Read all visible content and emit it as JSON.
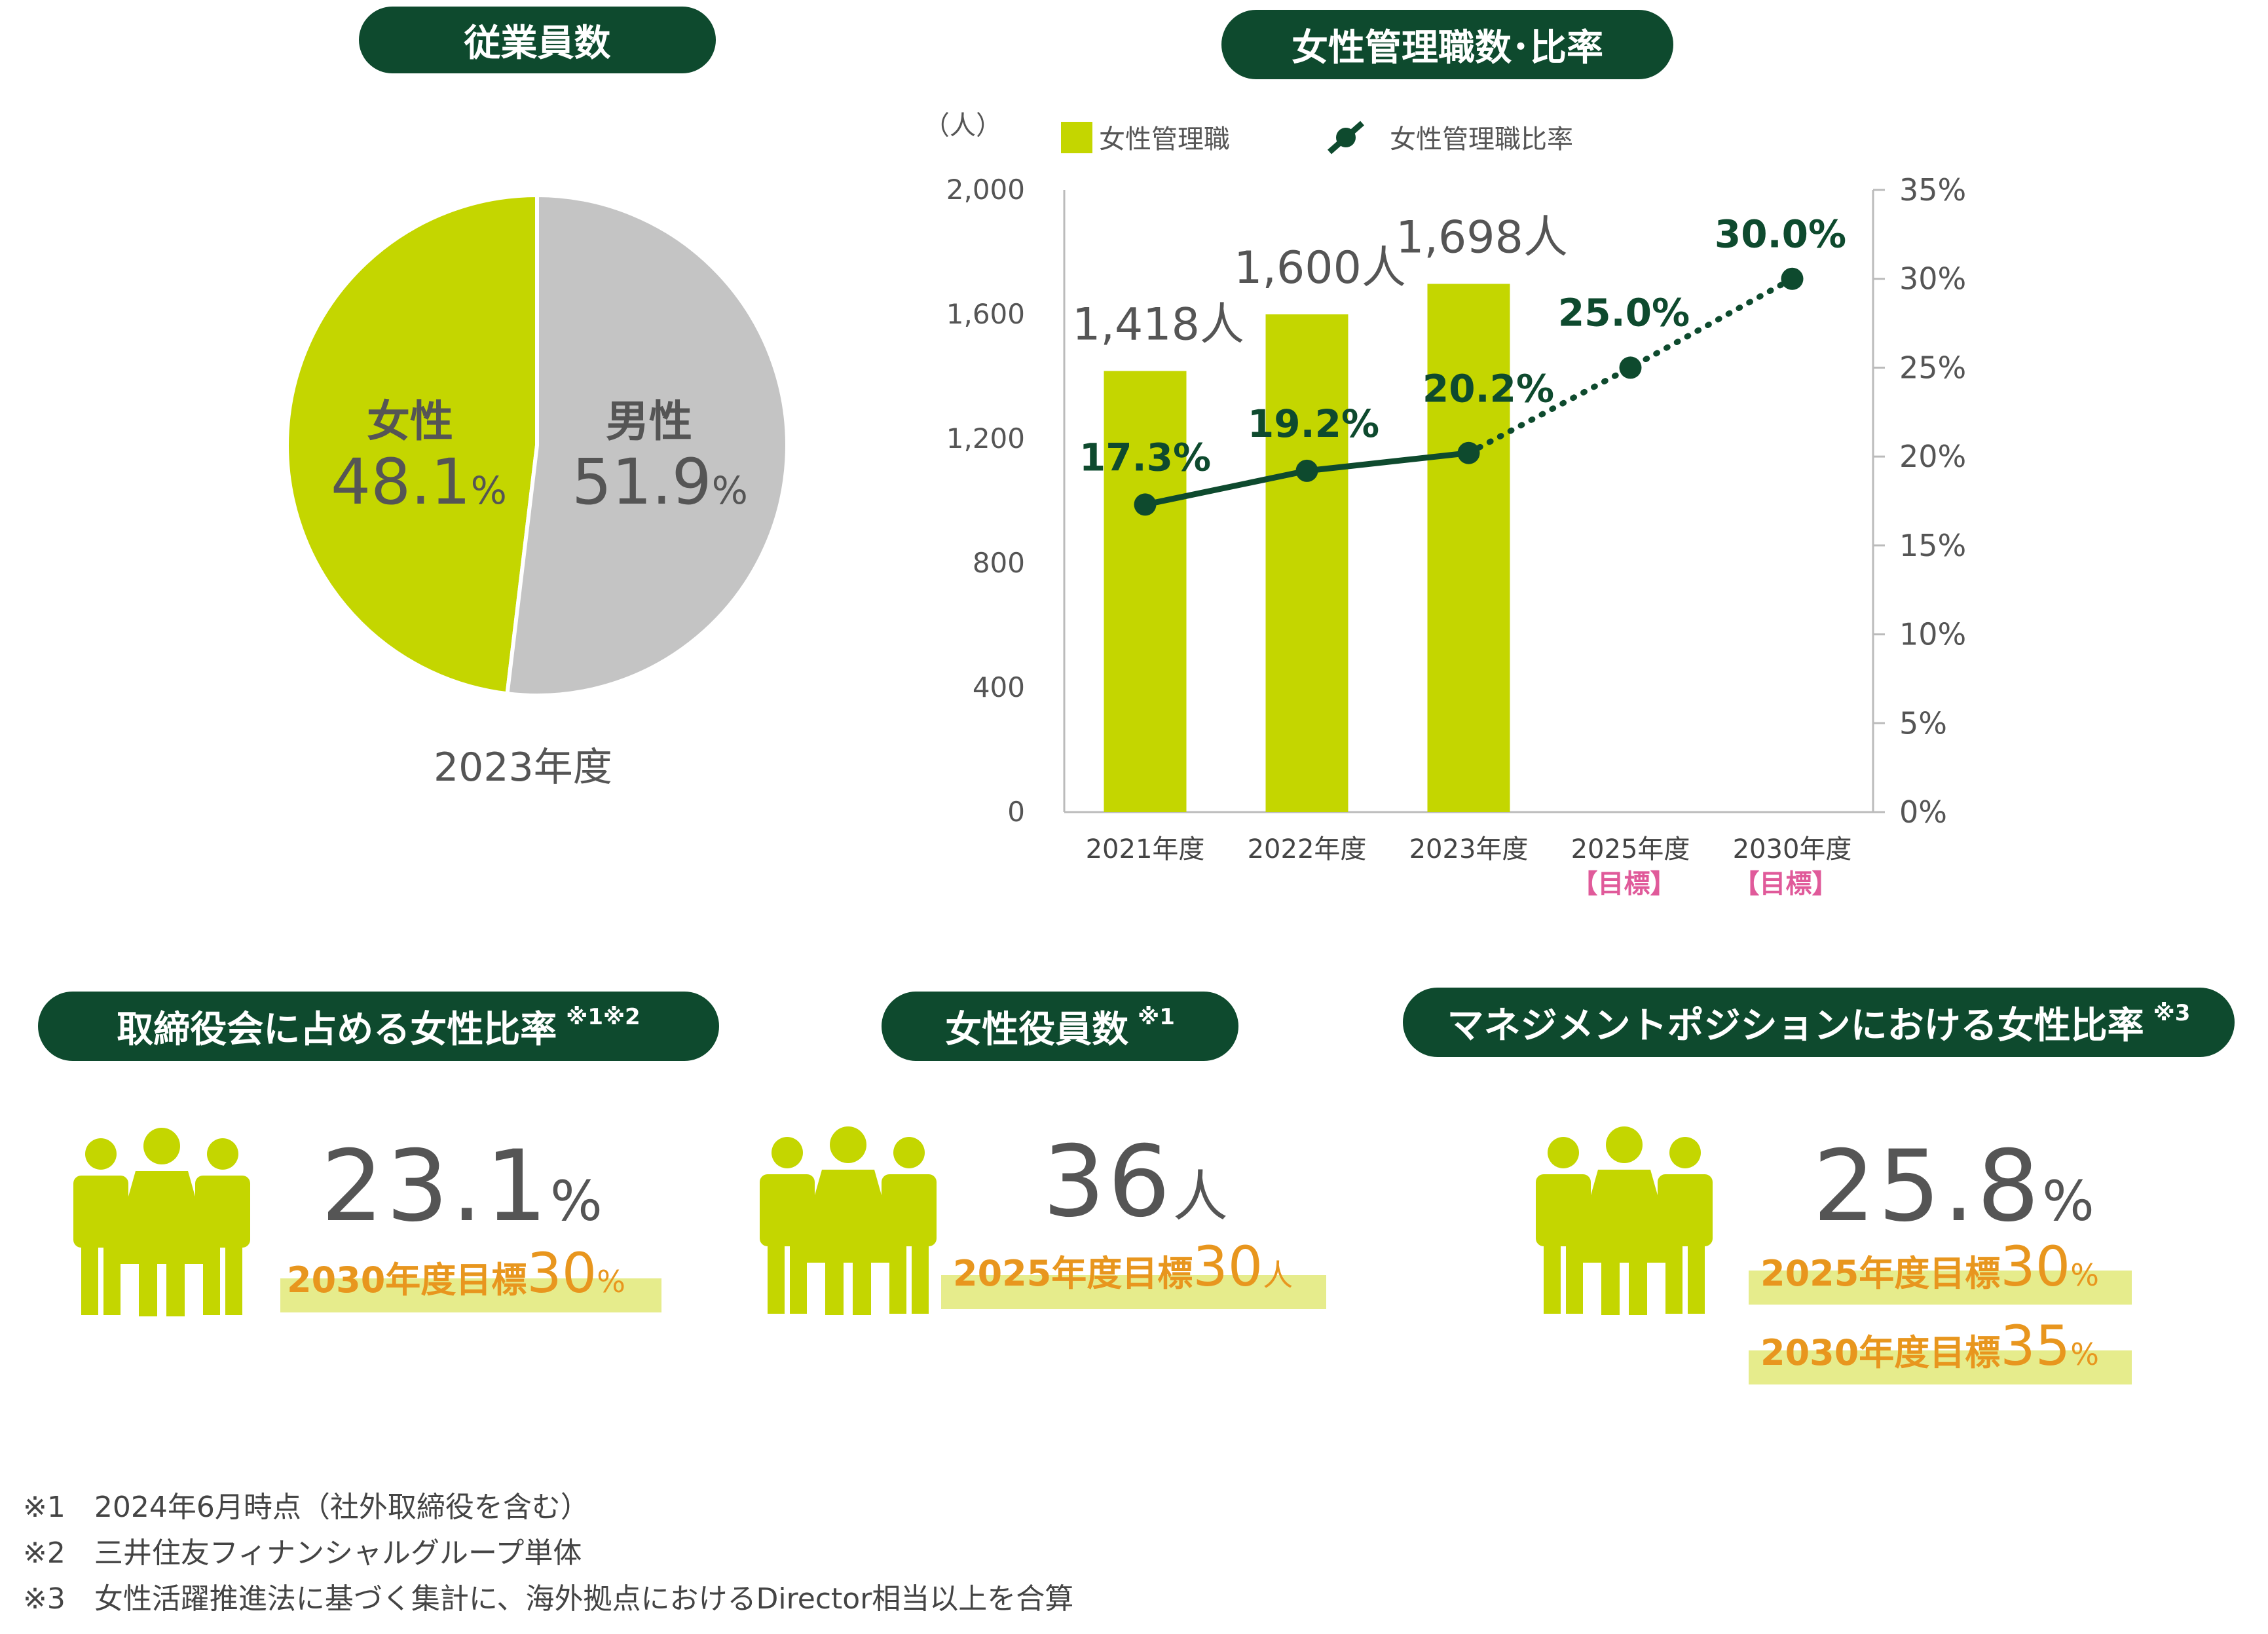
{
  "employees": {
    "title": "従業員数",
    "year_label": "2023年度",
    "female_label": "女性",
    "female_value": "48.1",
    "male_label": "男性",
    "male_value": "51.9",
    "unit": "%"
  },
  "managers": {
    "title": "女性管理職数･比率",
    "unit_left": "（人）",
    "legend_bar": "女性管理職",
    "legend_line": "女性管理職比率",
    "year_unit": "年度",
    "target_label": "【目標】"
  },
  "board": {
    "title": "取締役会に占める女性比率",
    "note_mark": "※1※2",
    "value": "23.1",
    "unit": "%",
    "goal_label": "2030年度目標",
    "goal_value": "30",
    "goal_unit": "%"
  },
  "officers": {
    "title": "女性役員数",
    "note_mark": "※1",
    "value": "36",
    "unit": "人",
    "goal_label": "2025年度目標",
    "goal_value": "30",
    "goal_unit": "人"
  },
  "management": {
    "title": "マネジメントポジションにおける女性比率",
    "note_mark": "※3",
    "value": "25.8",
    "unit": "%",
    "goal1_label": "2025年度目標",
    "goal1_value": "30",
    "goal1_unit": "%",
    "goal2_label": "2030年度目標",
    "goal2_value": "35",
    "goal2_unit": "%"
  },
  "notes": [
    "※1　2024年6月時点（社外取締役を含む）",
    "※2　三井住友フィナンシャルグループ単体",
    "※3　女性活躍推進法に基づく集計に、海外拠点におけるDirector相当以上を合算"
  ],
  "colors": {
    "dark_green": "#0e4a2e",
    "lime": "#c4d600",
    "gray": "#c4c4c4",
    "orange": "#e8961e",
    "pink": "#e05a9a",
    "highlight": "#e6ec8c"
  },
  "chart_data": [
    {
      "type": "pie",
      "title": "従業員数",
      "categories": [
        "女性",
        "男性"
      ],
      "values": [
        48.1,
        51.9
      ],
      "colors": [
        "#c4d600",
        "#c4c4c4"
      ]
    },
    {
      "type": "bar",
      "title": "女性管理職数･比率",
      "categories": [
        "2021年度",
        "2022年度",
        "2023年度",
        "2025年度【目標】",
        "2030年度【目標】"
      ],
      "series": [
        {
          "name": "女性管理職",
          "values": [
            1418,
            1600,
            1698,
            null,
            null
          ],
          "labels": [
            "1,418人",
            "1,600人",
            "1,698人",
            "",
            ""
          ]
        },
        {
          "name": "女性管理職比率",
          "type": "line",
          "axis": "right",
          "values": [
            17.3,
            19.2,
            20.2,
            25.0,
            30.0
          ],
          "labels": [
            "17.3%",
            "19.2%",
            "20.2%",
            "25.0%",
            "30.0%"
          ],
          "dotted_from_index": 2
        }
      ],
      "ylim": [
        0,
        2000
      ],
      "yticks": [
        "0",
        "400",
        "800",
        "1,200",
        "1,600",
        "2,000"
      ],
      "y2lim": [
        0,
        35
      ],
      "y2ticks": [
        "0%",
        "5%",
        "10%",
        "15%",
        "20%",
        "25%",
        "30%",
        "35%"
      ],
      "grid": false,
      "legend": "top"
    }
  ]
}
